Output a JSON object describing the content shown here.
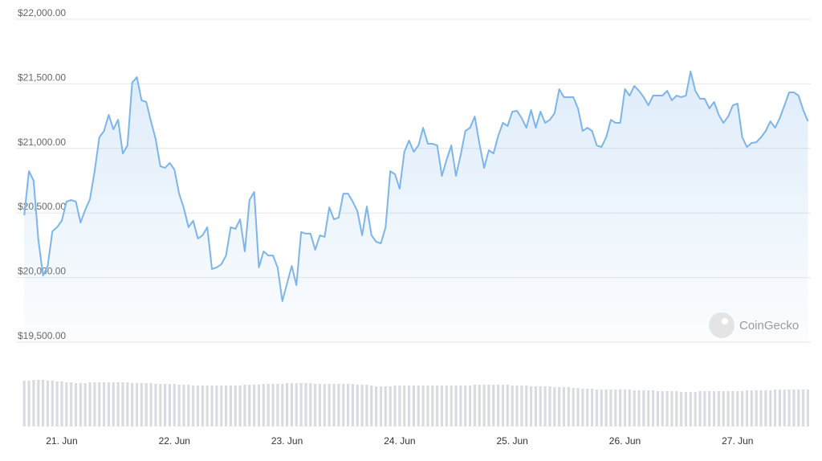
{
  "chart_data": {
    "type": "line",
    "categories": [
      null,
      null,
      null,
      null,
      null,
      null,
      null,
      null,
      "21. Jun",
      null,
      null,
      null,
      null,
      null,
      null,
      null,
      null,
      null,
      null,
      null,
      null,
      null,
      null,
      null,
      null,
      null,
      null,
      null,
      null,
      null,
      null,
      null,
      "22. Jun",
      null,
      null,
      null,
      null,
      null,
      null,
      null,
      null,
      null,
      null,
      null,
      null,
      null,
      null,
      null,
      null,
      null,
      null,
      null,
      null,
      null,
      null,
      null,
      "23. Jun",
      null,
      null,
      null,
      null,
      null,
      null,
      null,
      null,
      null,
      null,
      null,
      null,
      null,
      null,
      null,
      null,
      null,
      null,
      null,
      null,
      null,
      null,
      null,
      "24. Jun",
      null,
      null,
      null,
      null,
      null,
      null,
      null,
      null,
      null,
      null,
      null,
      null,
      null,
      null,
      null,
      null,
      null,
      null,
      null,
      null,
      null,
      null,
      null,
      "25. Jun",
      null,
      null,
      null,
      null,
      null,
      null,
      null,
      null,
      null,
      null,
      null,
      null,
      null,
      null,
      null,
      null,
      null,
      null,
      null,
      null,
      null,
      null,
      null,
      "26. Jun",
      null,
      null,
      null,
      null,
      null,
      null,
      null,
      null,
      null,
      null,
      null,
      null,
      null,
      null,
      null,
      null,
      null,
      null,
      null,
      null,
      null,
      null,
      null,
      "27. Jun",
      null,
      null,
      null,
      null,
      null,
      null,
      null,
      null,
      null,
      null,
      null,
      null,
      null,
      null,
      null
    ],
    "series": [
      {
        "color": "#7cb5ec",
        "values": [
          20482,
          20824,
          20750,
          20296,
          20016,
          20090,
          20358,
          20390,
          20440,
          20588,
          20600,
          20588,
          20426,
          20525,
          20607,
          20824,
          21086,
          21135,
          21260,
          21148,
          21222,
          20961,
          21023,
          21509,
          21552,
          21372,
          21360,
          21210,
          21073,
          20862,
          20849,
          20887,
          20837,
          20650,
          20538,
          20390,
          20440,
          20302,
          20327,
          20390,
          20066,
          20078,
          20103,
          20171,
          20390,
          20377,
          20451,
          20203,
          20600,
          20663,
          20078,
          20203,
          20171,
          20171,
          20078,
          19817,
          19954,
          20090,
          19941,
          20352,
          20340,
          20340,
          20215,
          20327,
          20315,
          20544,
          20451,
          20464,
          20650,
          20650,
          20588,
          20513,
          20327,
          20550,
          20327,
          20277,
          20265,
          20390,
          20824,
          20800,
          20688,
          20974,
          21061,
          20974,
          21023,
          21160,
          21036,
          21036,
          21023,
          20787,
          20912,
          21023,
          20787,
          20949,
          21135,
          21160,
          21247,
          21036,
          20849,
          20986,
          20961,
          21098,
          21198,
          21173,
          21285,
          21291,
          21235,
          21160,
          21297,
          21160,
          21285,
          21198,
          21222,
          21272,
          21459,
          21397,
          21397,
          21397,
          21310,
          21135,
          21160,
          21135,
          21023,
          21011,
          21086,
          21222,
          21198,
          21198,
          21459,
          21409,
          21484,
          21446,
          21397,
          21334,
          21409,
          21409,
          21409,
          21446,
          21372,
          21409,
          21397,
          21409,
          21596,
          21446,
          21384,
          21384,
          21310,
          21360,
          21260,
          21198,
          21247,
          21334,
          21347,
          21086,
          21011,
          21042,
          21048,
          21086,
          21135,
          21210,
          21160,
          21235,
          21334,
          21434,
          21434,
          21409,
          21297,
          21210
        ]
      },
      {
        "type": "bar",
        "axis": "y2",
        "color": "#d8dbe1",
        "values": [
          57,
          57,
          58,
          58,
          58,
          57,
          57,
          56,
          56,
          55,
          55,
          54,
          54,
          54,
          55,
          55,
          55,
          55,
          55,
          55,
          55,
          55,
          55,
          54,
          54,
          54,
          54,
          54,
          53,
          53,
          53,
          53,
          53,
          52,
          52,
          52,
          51,
          51,
          51,
          51,
          51,
          51,
          51,
          51,
          51,
          51,
          51,
          52,
          52,
          52,
          52,
          53,
          53,
          53,
          53,
          53,
          54,
          54,
          54,
          54,
          54,
          54,
          53,
          53,
          53,
          53,
          53,
          53,
          53,
          53,
          53,
          52,
          52,
          52,
          51,
          50,
          50,
          50,
          50,
          51,
          51,
          51,
          51,
          51,
          51,
          51,
          51,
          51,
          51,
          51,
          51,
          51,
          51,
          51,
          51,
          51,
          52,
          52,
          52,
          52,
          52,
          52,
          52,
          52,
          51,
          51,
          51,
          51,
          50,
          50,
          50,
          50,
          50,
          49,
          49,
          49,
          49,
          48,
          48,
          47,
          47,
          47,
          46,
          46,
          46,
          46,
          46,
          46,
          46,
          46,
          45,
          45,
          45,
          45,
          45,
          44,
          44,
          44,
          44,
          44,
          43,
          43,
          43,
          43,
          44,
          44,
          44,
          44,
          44,
          44,
          44,
          44,
          44,
          44,
          45,
          45,
          45,
          45,
          45,
          45,
          46,
          46,
          46,
          46,
          46,
          46,
          46,
          46
        ]
      }
    ],
    "ylim": [
      19500,
      22000
    ],
    "yticks": [
      {
        "value": 19500,
        "label": "$19,500.00"
      },
      {
        "value": 20000,
        "label": "$20,000.00"
      },
      {
        "value": 20500,
        "label": "$20,500.00"
      },
      {
        "value": 21000,
        "label": "$21,000.00"
      },
      {
        "value": 21500,
        "label": "$21,500.00"
      },
      {
        "value": 22000,
        "label": "$22,000.00"
      }
    ],
    "y2lim": [
      0,
      60
    ],
    "grid": true,
    "area": true
  },
  "watermark": "CoinGecko"
}
